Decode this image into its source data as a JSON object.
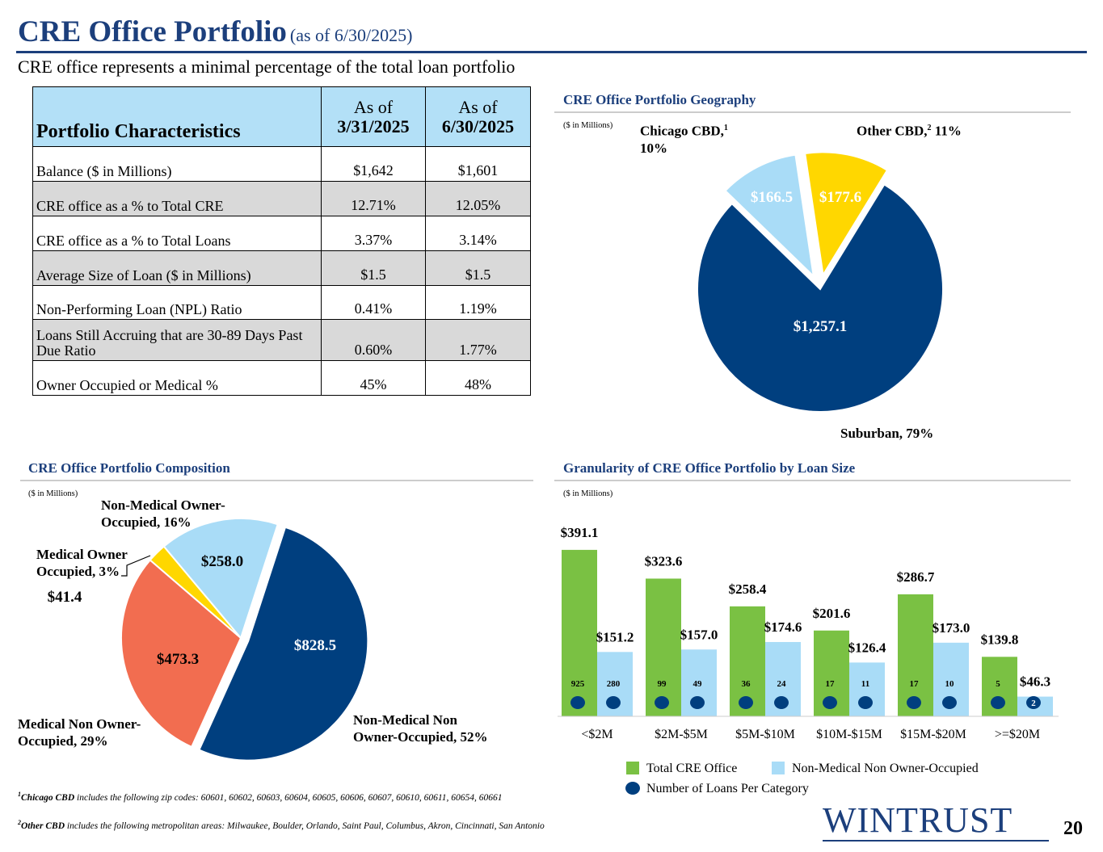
{
  "header": {
    "title": "CRE Office Portfolio",
    "title_note": "(as of 6/30/2025)",
    "subtitle": "CRE office represents a minimal percentage of the total loan portfolio"
  },
  "table": {
    "columns": [
      {
        "line1": "Portfolio Characteristics"
      },
      {
        "line1": "As of",
        "line2": "3/31/2025"
      },
      {
        "line1": "As of",
        "line2": "6/30/2025"
      }
    ],
    "rows": [
      [
        "Balance ($ in Millions)",
        "$1,642",
        "$1,601"
      ],
      [
        "CRE office as a % to Total CRE",
        "12.71%",
        "12.05%"
      ],
      [
        "CRE office as a % to Total Loans",
        "3.37%",
        "3.14%"
      ],
      [
        "Average Size of Loan ($ in Millions)",
        "$1.5",
        "$1.5"
      ],
      [
        "Non-Performing Loan (NPL) Ratio",
        "0.41%",
        "1.19%"
      ],
      [
        "Loans Still Accruing that are 30-89 Days Past Due Ratio",
        "0.60%",
        "1.77%"
      ],
      [
        "Owner Occupied or Medical %",
        "45%",
        "48%"
      ]
    ]
  },
  "chart_data": [
    {
      "type": "pie",
      "title": "CRE Office Portfolio Geography",
      "unit_note": "($ in Millions)",
      "categories": [
        "Chicago CBD,",
        "Other CBD,",
        "Suburban,"
      ],
      "category_notes": [
        "1",
        "2",
        null
      ],
      "share_labels": [
        "10%",
        "11%",
        "79%"
      ],
      "values": [
        166.5,
        177.6,
        1257.1
      ],
      "value_labels": [
        "$166.5",
        "$177.6",
        "$1,257.1"
      ],
      "colors": [
        "#a9dcf7",
        "#ffd700",
        "#003f7f"
      ]
    },
    {
      "type": "pie",
      "title": "CRE Office Portfolio Composition",
      "unit_note": "($ in Millions)",
      "categories": [
        "Non-Medical Non Owner-Occupied,",
        "Medical Non Owner-Occupied,",
        "Medical Owner Occupied,",
        "Non-Medical Owner-Occupied,"
      ],
      "share_labels": [
        "52%",
        "29%",
        "3%",
        "16%"
      ],
      "values": [
        828.5,
        473.3,
        41.4,
        258.0
      ],
      "value_labels": [
        "$828.5",
        "$473.3",
        "$41.4",
        "$258.0"
      ],
      "colors": [
        "#003f7f",
        "#f26d50",
        "#ffd700",
        "#a9dcf7"
      ]
    },
    {
      "type": "bar",
      "title": "Granularity of CRE Office Portfolio by Loan Size",
      "unit_note": "($ in Millions)",
      "categories": [
        "<$2M",
        "$2M-$5M",
        "$5M-$10M",
        "$10M-$15M",
        "$15M-$20M",
        ">=$20M"
      ],
      "series": [
        {
          "name": "Total CRE Office",
          "color": "#7ac143",
          "values": [
            391.1,
            323.6,
            258.4,
            201.6,
            286.7,
            139.8
          ],
          "value_labels": [
            "$391.1",
            "$323.6",
            "$258.4",
            "$201.6",
            "$286.7",
            "$139.8"
          ],
          "loan_counts": [
            925,
            99,
            36,
            17,
            17,
            5
          ]
        },
        {
          "name": "Non-Medical Non Owner-Occupied",
          "color": "#a9dcf7",
          "values": [
            151.2,
            157.0,
            174.6,
            126.4,
            173.0,
            46.3
          ],
          "value_labels": [
            "$151.2",
            "$157.0",
            "$174.6",
            "$126.4",
            "$173.0",
            "$46.3"
          ],
          "loan_counts": [
            280,
            49,
            24,
            11,
            10,
            2
          ]
        }
      ],
      "count_legend": "Number of Loans Per Category",
      "count_color": "#003f7f"
    }
  ],
  "footnotes": [
    {
      "mark": "1",
      "term": "Chicago CBD",
      "text": "includes the following zip codes: 60601, 60602, 60603, 60604, 60605, 60606, 60607, 60610, 60611, 60654, 60661"
    },
    {
      "mark": "2",
      "term": "Other CBD",
      "text": "includes the following metropolitan areas: Milwaukee, Boulder, Orlando, Saint Paul, Columbus, Akron, Cincinnati, San Antonio"
    }
  ],
  "logo": "WINTRUST",
  "page_number": "20"
}
